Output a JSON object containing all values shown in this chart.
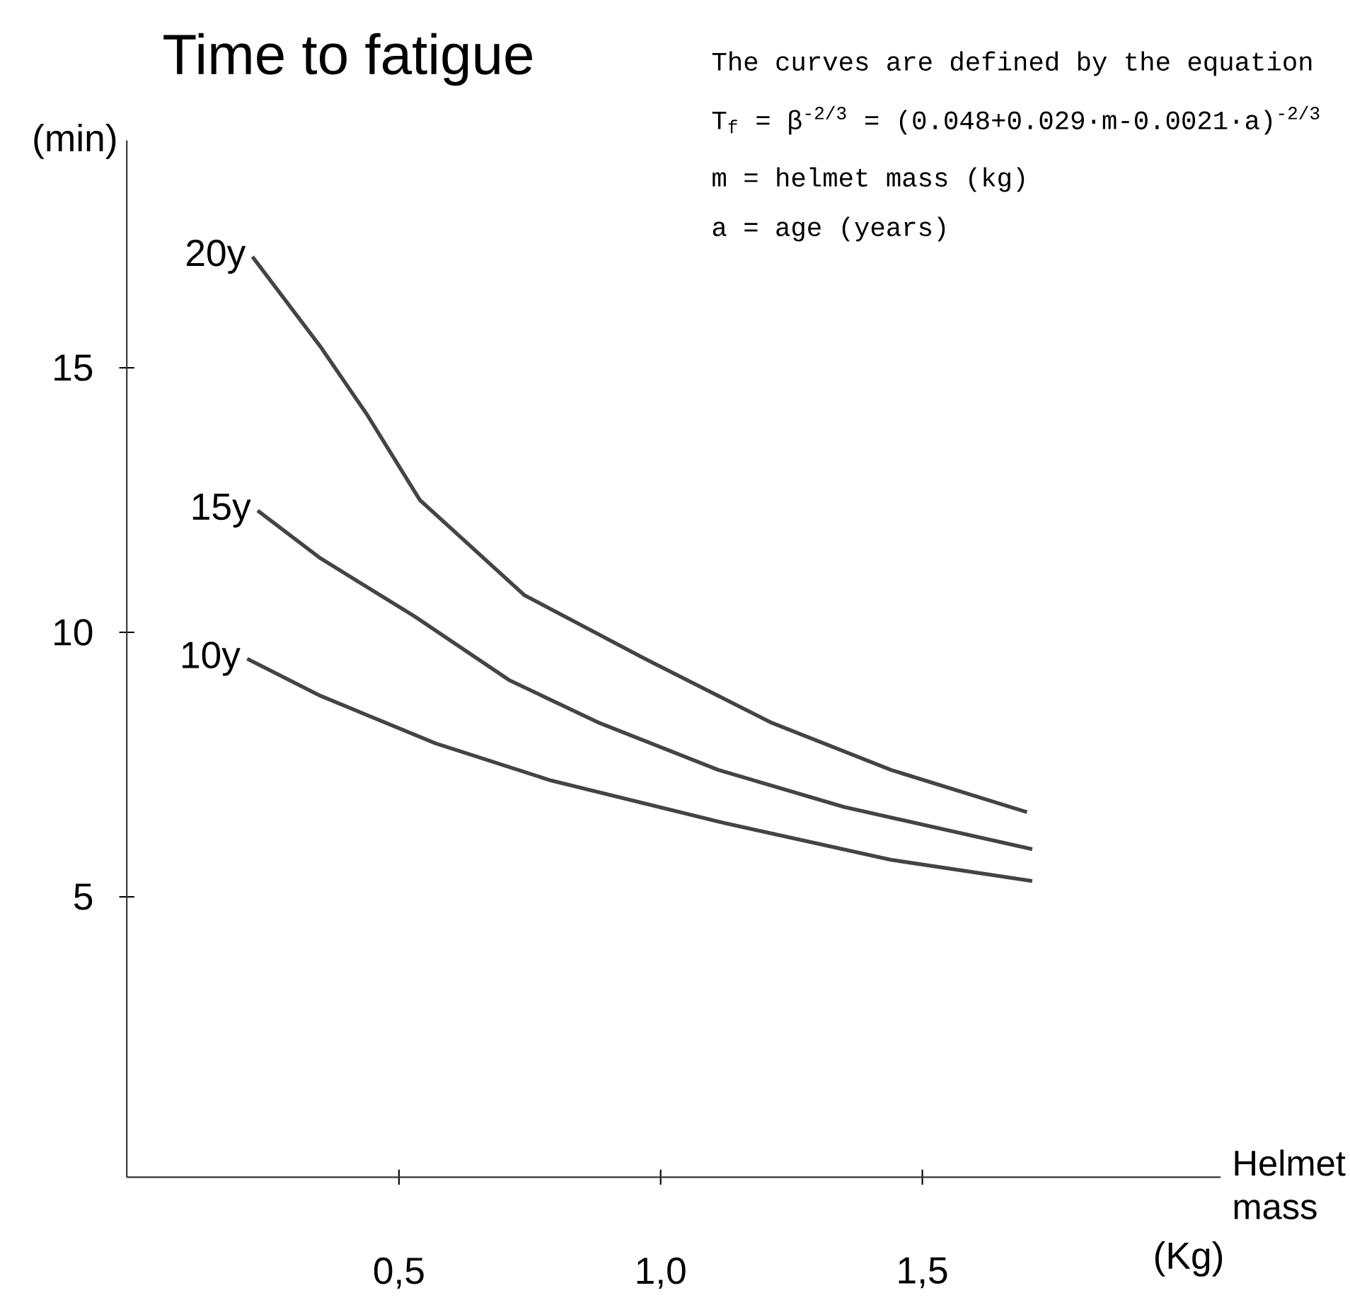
{
  "chart_data": {
    "type": "line",
    "title": "Time to fatigue",
    "ylabel": "(min)",
    "xlabel": "Helmet mass",
    "annotations": [
      "The curves are defined by the equation",
      "T$_{f}$ = β$^{-2/3}$ = (0.048+0.029·m-0.0021·a)$^{-2/3}$",
      "m  =  helmet mass (kg)",
      "a  =  age (years)",
      "(Kg)"
    ],
    "xlim": [
      -0.02,
      2.07
    ],
    "ylim": [
      -0.3,
      19.3
    ],
    "xticks": [
      {
        "value": 0.5,
        "label": "0,5"
      },
      {
        "value": 1.0,
        "label": "1,0"
      },
      {
        "value": 1.5,
        "label": "1,5"
      }
    ],
    "yticks": [
      5,
      10,
      15
    ],
    "series": [
      {
        "name": "20y",
        "color": "#444444",
        "x": [
          0.22,
          0.35,
          0.44,
          0.54,
          0.74,
          0.97,
          1.21,
          1.44,
          1.7
        ],
        "values": [
          17.1,
          15.4,
          14.1,
          12.5,
          10.7,
          9.5,
          8.3,
          7.4,
          6.6
        ]
      },
      {
        "name": "15y",
        "color": "#444444",
        "x": [
          0.23,
          0.35,
          0.53,
          0.71,
          0.88,
          1.11,
          1.35,
          1.71
        ],
        "values": [
          12.3,
          11.4,
          10.3,
          9.1,
          8.3,
          7.4,
          6.7,
          5.9
        ]
      },
      {
        "name": "10y",
        "color": "#444444",
        "x": [
          0.21,
          0.35,
          0.57,
          0.79,
          1.12,
          1.44,
          1.71
        ],
        "values": [
          9.5,
          8.8,
          7.9,
          7.2,
          6.4,
          5.7,
          5.3
        ]
      }
    ]
  }
}
